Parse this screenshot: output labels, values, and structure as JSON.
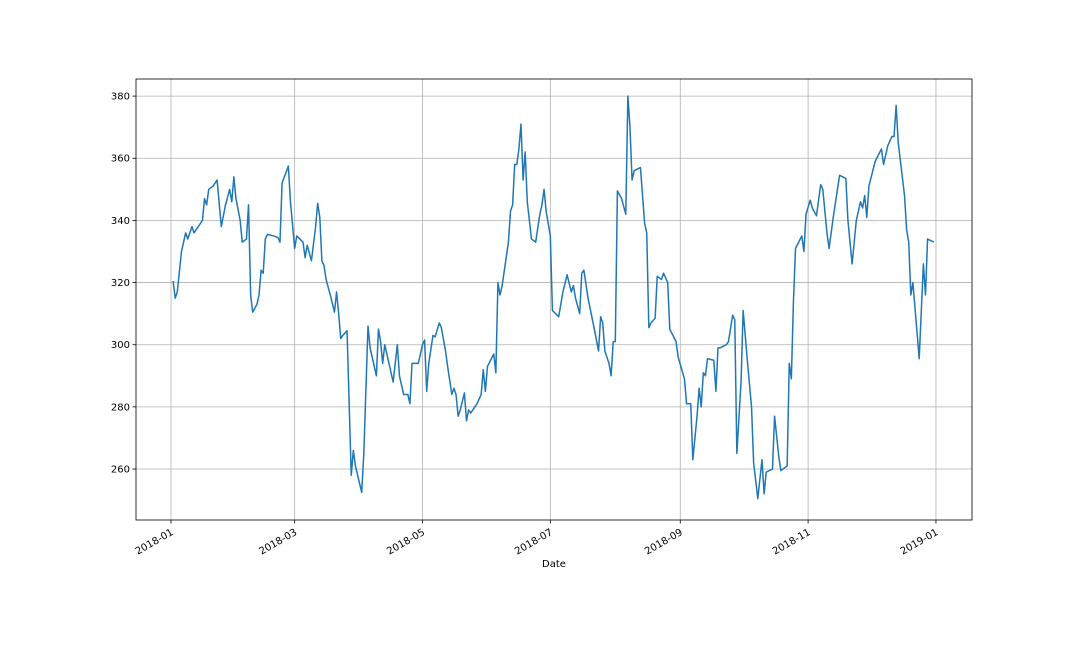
{
  "chart_data": {
    "type": "line",
    "xlabel": "Date",
    "color": "#1f77b4",
    "grid": true,
    "xlim": [
      -16.7,
      382.2
    ],
    "ylim": [
      243.6,
      385.5
    ],
    "xticks": [
      {
        "value": 0,
        "label": "2018-01"
      },
      {
        "value": 59,
        "label": "2018-03"
      },
      {
        "value": 120,
        "label": "2018-05"
      },
      {
        "value": 181,
        "label": "2018-07"
      },
      {
        "value": 243,
        "label": "2018-09"
      },
      {
        "value": 304,
        "label": "2018-11"
      },
      {
        "value": 365,
        "label": "2019-01"
      }
    ],
    "yticks": [
      260,
      280,
      300,
      320,
      340,
      360,
      380
    ],
    "x": [
      1,
      2,
      3,
      5,
      7,
      8,
      10,
      11,
      14,
      15,
      16,
      17,
      18,
      20,
      22,
      24,
      26,
      28,
      29,
      30,
      31,
      33,
      34,
      36,
      37,
      38,
      39,
      41,
      42,
      43,
      44,
      45,
      46,
      49,
      51,
      52,
      53,
      56,
      57,
      59,
      60,
      63,
      64,
      65,
      67,
      69,
      70,
      71,
      72,
      73,
      74,
      76,
      78,
      79,
      80,
      81,
      82,
      84,
      86,
      87,
      88,
      91,
      92,
      94,
      95,
      98,
      99,
      100,
      101,
      102,
      104,
      106,
      108,
      109,
      111,
      113,
      114,
      115,
      118,
      120,
      121,
      122,
      123,
      125,
      126,
      128,
      129,
      131,
      132,
      134,
      135,
      136,
      137,
      138,
      140,
      141,
      142,
      143,
      146,
      148,
      149,
      150,
      151,
      154,
      155,
      156,
      157,
      158,
      161,
      162,
      163,
      164,
      165,
      166,
      167,
      168,
      169,
      170,
      172,
      174,
      176,
      177,
      178,
      179,
      181,
      182,
      185,
      187,
      189,
      191,
      192,
      193,
      195,
      196,
      197,
      199,
      202,
      204,
      205,
      206,
      207,
      209,
      210,
      211,
      212,
      213,
      215,
      217,
      218,
      219,
      220,
      221,
      224,
      226,
      227,
      228,
      229,
      231,
      232,
      234,
      235,
      237,
      238,
      241,
      242,
      245,
      246,
      248,
      249,
      251,
      252,
      253,
      254,
      255,
      256,
      259,
      260,
      261,
      262,
      265,
      266,
      268,
      269,
      270,
      272,
      273,
      275,
      277,
      278,
      280,
      282,
      283,
      284,
      287,
      288,
      290,
      291,
      294,
      295,
      296,
      297,
      298,
      301,
      302,
      303,
      305,
      306,
      308,
      310,
      311,
      313,
      314,
      316,
      319,
      322,
      323,
      325,
      327,
      329,
      330,
      331,
      332,
      333,
      336,
      339,
      340,
      342,
      344,
      345,
      346,
      347,
      350,
      351,
      352,
      353,
      354,
      357,
      359,
      360,
      361,
      364
    ],
    "values": [
      320.5,
      315,
      317,
      330,
      336,
      334,
      338,
      336,
      339,
      340,
      347,
      345,
      350,
      351,
      353,
      338,
      345,
      350,
      346,
      354,
      347,
      340,
      333,
      334,
      345,
      316,
      310.5,
      313,
      316,
      324,
      323,
      334,
      335.5,
      335,
      334.5,
      333,
      352,
      357.5,
      346,
      331,
      335,
      333,
      328,
      332,
      327,
      338,
      345.5,
      341,
      327,
      325.5,
      321,
      316,
      310.5,
      317,
      310,
      302,
      303,
      304.5,
      258,
      266,
      261,
      252.5,
      265,
      306,
      299,
      290,
      305,
      301,
      294,
      300,
      294,
      288,
      300,
      290,
      284,
      284,
      281,
      294,
      294,
      300,
      301.5,
      285,
      294,
      303,
      302.5,
      307,
      305.5,
      298,
      293,
      284,
      286,
      284,
      277,
      279,
      284.5,
      275.5,
      279,
      278,
      281,
      284,
      292,
      285,
      293,
      297,
      291,
      320,
      316,
      319,
      333,
      343,
      345,
      358,
      358,
      363,
      371,
      353,
      362,
      346,
      334,
      333,
      342,
      345,
      350,
      343,
      335,
      311,
      309,
      317,
      322.5,
      317,
      319,
      315,
      310,
      323,
      324,
      315,
      305,
      298,
      309,
      307,
      298,
      294,
      290,
      301,
      301,
      349.5,
      347,
      342,
      380,
      370,
      353,
      356,
      357,
      339,
      336,
      305.5,
      307,
      308.5,
      322,
      321,
      323,
      320,
      305,
      301,
      296,
      289,
      281,
      281,
      263,
      277,
      286,
      280,
      291,
      290,
      295.5,
      295,
      285,
      299,
      299,
      300,
      301,
      309.5,
      308,
      265,
      288,
      311,
      295,
      280,
      262,
      250.5,
      263,
      252,
      259,
      260,
      277,
      264,
      259.5,
      261,
      294,
      289,
      314,
      331,
      335,
      330,
      342,
      346.5,
      344,
      341.5,
      351.5,
      350,
      336,
      331,
      341,
      354.5,
      353.5,
      340,
      326,
      340,
      346,
      344,
      348,
      341,
      351,
      359,
      363,
      358,
      364,
      367,
      367,
      377,
      365,
      348,
      337,
      333,
      316,
      320,
      295.5,
      326,
      316,
      334,
      333
    ]
  }
}
